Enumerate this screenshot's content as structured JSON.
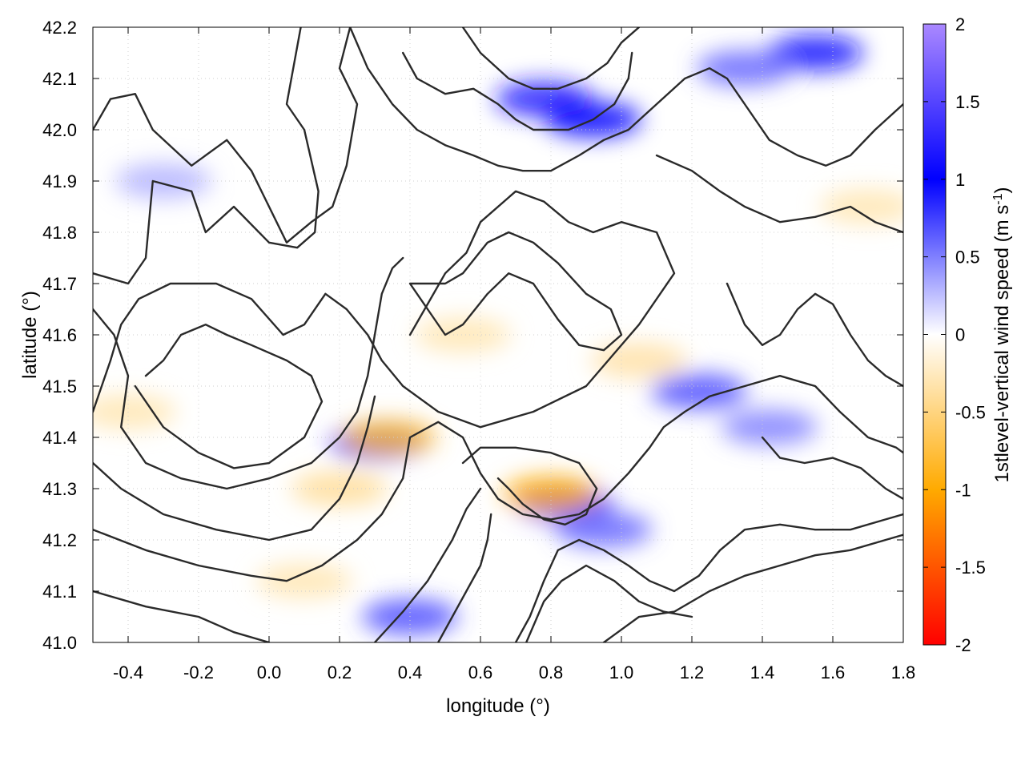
{
  "chart_data": {
    "type": "heatmap",
    "xlabel": "longitude (°)",
    "ylabel": "latitude (°)",
    "colorbar_label_prefix": "1stlevel-vertical wind speed (m s",
    "colorbar_label_exponent": "-1",
    "colorbar_label_suffix": ")",
    "xlim": [
      -0.5,
      1.8
    ],
    "ylim": [
      41.0,
      42.2
    ],
    "clim": [
      -2,
      2
    ],
    "x_ticks": [
      -0.4,
      -0.2,
      0.0,
      0.2,
      0.4,
      0.6,
      0.8,
      1.0,
      1.2,
      1.4,
      1.6,
      1.8
    ],
    "x_tick_labels": [
      "-0.4",
      "-0.2",
      "0.0",
      "0.2",
      "0.4",
      "0.6",
      "0.8",
      "1.0",
      "1.2",
      "1.4",
      "1.6",
      "1.8"
    ],
    "y_ticks": [
      41.0,
      41.1,
      41.2,
      41.3,
      41.4,
      41.5,
      41.6,
      41.7,
      41.8,
      41.9,
      42.0,
      42.1,
      42.2
    ],
    "y_tick_labels": [
      "41.0",
      "41.1",
      "41.2",
      "41.3",
      "41.4",
      "41.5",
      "41.6",
      "41.7",
      "41.8",
      "41.9",
      "42.0",
      "42.1",
      "42.2"
    ],
    "colorbar_ticks": [
      2,
      1.5,
      1,
      0.5,
      0,
      -0.5,
      -1,
      -1.5,
      -2
    ],
    "colorbar_tick_labels": [
      "2",
      "1.5",
      "1",
      "0.5",
      "0",
      "-0.5",
      "-1",
      "-1.5",
      "-2"
    ],
    "colormap": [
      {
        "value": -2,
        "color": "#ff0000"
      },
      {
        "value": -1,
        "color": "#ffaa00"
      },
      {
        "value": 0,
        "color": "#ffffff"
      },
      {
        "value": 1,
        "color": "#0000ff"
      },
      {
        "value": 2,
        "color": "#aa88ff"
      }
    ],
    "grid": true,
    "field_cells": [
      {
        "lon": 0.78,
        "lat": 42.06,
        "value": 1.2
      },
      {
        "lon": 0.92,
        "lat": 42.02,
        "value": 1.0
      },
      {
        "lon": 1.55,
        "lat": 42.15,
        "value": 1.1
      },
      {
        "lon": 1.35,
        "lat": 42.12,
        "value": 0.6
      },
      {
        "lon": 0.84,
        "lat": 41.27,
        "value": 1.3
      },
      {
        "lon": 0.8,
        "lat": 41.29,
        "value": -1.0
      },
      {
        "lon": 0.31,
        "lat": 41.39,
        "value": 1.0
      },
      {
        "lon": 0.34,
        "lat": 41.4,
        "value": -0.8
      },
      {
        "lon": 1.22,
        "lat": 41.49,
        "value": 0.7
      },
      {
        "lon": 1.42,
        "lat": 41.42,
        "value": 0.5
      },
      {
        "lon": 0.4,
        "lat": 41.05,
        "value": 0.7
      },
      {
        "lon": 0.2,
        "lat": 41.3,
        "value": -0.4
      },
      {
        "lon": 0.1,
        "lat": 41.12,
        "value": -0.3
      },
      {
        "lon": 0.55,
        "lat": 41.6,
        "value": -0.3
      },
      {
        "lon": 1.05,
        "lat": 41.55,
        "value": -0.35
      },
      {
        "lon": -0.3,
        "lat": 41.9,
        "value": 0.3
      },
      {
        "lon": 1.7,
        "lat": 41.85,
        "value": -0.3
      },
      {
        "lon": 0.95,
        "lat": 41.22,
        "value": 0.6
      },
      {
        "lon": -0.4,
        "lat": 41.45,
        "value": -0.3
      }
    ],
    "contours": [
      [
        [
          -0.5,
          42.0
        ],
        [
          -0.45,
          42.06
        ],
        [
          -0.38,
          42.07
        ],
        [
          -0.33,
          42.0
        ],
        [
          -0.22,
          41.93
        ],
        [
          -0.12,
          41.98
        ],
        [
          -0.05,
          41.92
        ],
        [
          0.05,
          41.78
        ],
        [
          0.12,
          41.82
        ],
        [
          0.18,
          41.85
        ],
        [
          0.22,
          41.93
        ],
        [
          0.25,
          42.05
        ],
        [
          0.2,
          42.12
        ],
        [
          0.23,
          42.2
        ]
      ],
      [
        [
          -0.5,
          41.72
        ],
        [
          -0.4,
          41.7
        ],
        [
          -0.35,
          41.75
        ],
        [
          -0.33,
          41.9
        ],
        [
          -0.22,
          41.88
        ],
        [
          -0.18,
          41.8
        ],
        [
          -0.1,
          41.85
        ],
        [
          0.0,
          41.78
        ],
        [
          0.08,
          41.77
        ],
        [
          0.13,
          41.8
        ],
        [
          0.14,
          41.88
        ],
        [
          0.1,
          42.0
        ],
        [
          0.05,
          42.05
        ],
        [
          0.09,
          42.2
        ]
      ],
      [
        [
          -0.5,
          41.45
        ],
        [
          -0.45,
          41.55
        ],
        [
          -0.42,
          41.62
        ],
        [
          -0.37,
          41.67
        ],
        [
          -0.28,
          41.7
        ],
        [
          -0.15,
          41.7
        ],
        [
          -0.05,
          41.67
        ],
        [
          0.04,
          41.6
        ],
        [
          0.1,
          41.62
        ],
        [
          0.16,
          41.68
        ],
        [
          0.22,
          41.65
        ],
        [
          0.28,
          41.6
        ],
        [
          0.32,
          41.55
        ],
        [
          0.38,
          41.5
        ],
        [
          0.48,
          41.45
        ],
        [
          0.6,
          41.42
        ],
        [
          0.75,
          41.45
        ],
        [
          0.9,
          41.5
        ],
        [
          1.05,
          41.62
        ],
        [
          1.15,
          41.72
        ],
        [
          1.1,
          41.8
        ],
        [
          1.0,
          41.82
        ],
        [
          0.92,
          41.8
        ],
        [
          0.85,
          41.82
        ],
        [
          0.78,
          41.86
        ],
        [
          0.7,
          41.88
        ],
        [
          0.6,
          41.82
        ],
        [
          0.56,
          41.76
        ],
        [
          0.5,
          41.72
        ],
        [
          0.45,
          41.66
        ],
        [
          0.4,
          41.6
        ]
      ],
      [
        [
          -0.38,
          41.5
        ],
        [
          -0.3,
          41.42
        ],
        [
          -0.2,
          41.37
        ],
        [
          -0.1,
          41.34
        ],
        [
          0.0,
          41.35
        ],
        [
          0.1,
          41.4
        ],
        [
          0.15,
          41.47
        ],
        [
          0.12,
          41.52
        ],
        [
          0.05,
          41.55
        ],
        [
          -0.05,
          41.58
        ],
        [
          -0.12,
          41.6
        ],
        [
          -0.18,
          41.62
        ],
        [
          -0.25,
          41.6
        ],
        [
          -0.3,
          41.55
        ],
        [
          -0.35,
          41.52
        ]
      ],
      [
        [
          -0.5,
          41.65
        ],
        [
          -0.44,
          41.6
        ],
        [
          -0.4,
          41.52
        ],
        [
          -0.42,
          41.42
        ],
        [
          -0.35,
          41.35
        ],
        [
          -0.25,
          41.32
        ],
        [
          -0.12,
          41.3
        ],
        [
          0.0,
          41.32
        ],
        [
          0.12,
          41.35
        ],
        [
          0.2,
          41.4
        ],
        [
          0.25,
          41.45
        ],
        [
          0.28,
          41.52
        ],
        [
          0.3,
          41.6
        ],
        [
          0.32,
          41.68
        ],
        [
          0.35,
          41.73
        ],
        [
          0.38,
          41.75
        ]
      ],
      [
        [
          0.4,
          41.7
        ],
        [
          0.45,
          41.65
        ],
        [
          0.5,
          41.6
        ],
        [
          0.55,
          41.62
        ],
        [
          0.62,
          41.68
        ],
        [
          0.68,
          41.72
        ],
        [
          0.75,
          41.7
        ],
        [
          0.82,
          41.63
        ],
        [
          0.88,
          41.58
        ],
        [
          0.95,
          41.57
        ],
        [
          1.0,
          41.6
        ],
        [
          0.97,
          41.65
        ],
        [
          0.9,
          41.68
        ],
        [
          0.82,
          41.74
        ],
        [
          0.75,
          41.78
        ],
        [
          0.68,
          41.8
        ],
        [
          0.62,
          41.78
        ],
        [
          0.55,
          41.72
        ],
        [
          0.5,
          41.7
        ],
        [
          0.4,
          41.7
        ]
      ],
      [
        [
          -0.5,
          41.22
        ],
        [
          -0.35,
          41.18
        ],
        [
          -0.2,
          41.15
        ],
        [
          -0.05,
          41.13
        ],
        [
          0.05,
          41.12
        ],
        [
          0.15,
          41.15
        ],
        [
          0.25,
          41.2
        ],
        [
          0.32,
          41.25
        ],
        [
          0.38,
          41.32
        ],
        [
          0.4,
          41.4
        ],
        [
          0.48,
          41.43
        ],
        [
          0.55,
          41.4
        ],
        [
          0.6,
          41.33
        ],
        [
          0.65,
          41.28
        ],
        [
          0.72,
          41.25
        ],
        [
          0.8,
          41.24
        ],
        [
          0.88,
          41.25
        ],
        [
          0.95,
          41.28
        ],
        [
          1.02,
          41.33
        ],
        [
          1.08,
          41.38
        ],
        [
          1.12,
          41.42
        ],
        [
          1.18,
          41.45
        ],
        [
          1.25,
          41.48
        ],
        [
          1.35,
          41.5
        ],
        [
          1.45,
          41.52
        ],
        [
          1.55,
          41.5
        ],
        [
          1.62,
          41.45
        ],
        [
          1.7,
          41.4
        ],
        [
          1.78,
          41.38
        ],
        [
          1.8,
          41.37
        ]
      ],
      [
        [
          -0.5,
          41.1
        ],
        [
          -0.35,
          41.07
        ],
        [
          -0.2,
          41.05
        ],
        [
          -0.1,
          41.02
        ],
        [
          0.0,
          41.0
        ]
      ],
      [
        [
          0.3,
          41.0
        ],
        [
          0.38,
          41.06
        ],
        [
          0.45,
          41.12
        ],
        [
          0.52,
          41.2
        ],
        [
          0.56,
          41.26
        ],
        [
          0.6,
          41.3
        ]
      ],
      [
        [
          0.48,
          41.0
        ],
        [
          0.52,
          41.05
        ],
        [
          0.56,
          41.1
        ],
        [
          0.6,
          41.15
        ],
        [
          0.62,
          41.2
        ],
        [
          0.63,
          41.25
        ]
      ],
      [
        [
          0.7,
          41.0
        ],
        [
          0.74,
          41.05
        ],
        [
          0.78,
          41.12
        ],
        [
          0.82,
          41.18
        ],
        [
          0.88,
          41.2
        ],
        [
          0.95,
          41.18
        ],
        [
          1.02,
          41.15
        ],
        [
          1.08,
          41.12
        ],
        [
          1.15,
          41.1
        ],
        [
          1.22,
          41.13
        ],
        [
          1.28,
          41.18
        ],
        [
          1.35,
          41.22
        ],
        [
          1.45,
          41.23
        ],
        [
          1.55,
          41.22
        ],
        [
          1.65,
          41.22
        ],
        [
          1.75,
          41.24
        ],
        [
          1.8,
          41.25
        ]
      ],
      [
        [
          0.73,
          41.0
        ],
        [
          0.78,
          41.08
        ],
        [
          0.83,
          41.12
        ],
        [
          0.9,
          41.15
        ],
        [
          0.98,
          41.12
        ],
        [
          1.05,
          41.08
        ],
        [
          1.12,
          41.06
        ],
        [
          1.2,
          41.05
        ]
      ],
      [
        [
          0.95,
          41.0
        ],
        [
          1.05,
          41.05
        ],
        [
          1.15,
          41.06
        ],
        [
          1.25,
          41.1
        ],
        [
          1.35,
          41.13
        ],
        [
          1.45,
          41.15
        ],
        [
          1.55,
          41.17
        ],
        [
          1.65,
          41.18
        ],
        [
          1.75,
          41.2
        ],
        [
          1.8,
          41.21
        ]
      ],
      [
        [
          0.23,
          42.2
        ],
        [
          0.28,
          42.12
        ],
        [
          0.35,
          42.05
        ],
        [
          0.42,
          42.0
        ],
        [
          0.5,
          41.97
        ],
        [
          0.58,
          41.95
        ],
        [
          0.65,
          41.93
        ],
        [
          0.72,
          41.92
        ],
        [
          0.8,
          41.92
        ],
        [
          0.88,
          41.95
        ],
        [
          0.95,
          41.98
        ],
        [
          1.02,
          42.0
        ],
        [
          1.1,
          42.05
        ],
        [
          1.18,
          42.1
        ],
        [
          1.25,
          42.12
        ],
        [
          1.3,
          42.1
        ],
        [
          1.35,
          42.05
        ],
        [
          1.42,
          41.98
        ],
        [
          1.5,
          41.95
        ],
        [
          1.58,
          41.93
        ],
        [
          1.65,
          41.95
        ],
        [
          1.72,
          42.0
        ],
        [
          1.8,
          42.05
        ]
      ],
      [
        [
          0.55,
          42.2
        ],
        [
          0.6,
          42.15
        ],
        [
          0.68,
          42.1
        ],
        [
          0.75,
          42.08
        ],
        [
          0.82,
          42.08
        ],
        [
          0.9,
          42.1
        ],
        [
          0.96,
          42.13
        ],
        [
          1.0,
          42.17
        ],
        [
          1.05,
          42.2
        ]
      ],
      [
        [
          0.38,
          42.15
        ],
        [
          0.42,
          42.1
        ],
        [
          0.5,
          42.07
        ],
        [
          0.58,
          42.08
        ],
        [
          0.65,
          42.05
        ],
        [
          0.7,
          42.02
        ],
        [
          0.75,
          42.0
        ],
        [
          0.85,
          42.0
        ],
        [
          0.92,
          42.02
        ],
        [
          0.98,
          42.05
        ],
        [
          1.02,
          42.1
        ],
        [
          1.03,
          42.15
        ]
      ],
      [
        [
          1.1,
          41.95
        ],
        [
          1.2,
          41.92
        ],
        [
          1.28,
          41.88
        ],
        [
          1.35,
          41.85
        ],
        [
          1.45,
          41.82
        ],
        [
          1.55,
          41.83
        ],
        [
          1.65,
          41.85
        ],
        [
          1.72,
          41.82
        ],
        [
          1.8,
          41.8
        ]
      ],
      [
        [
          1.3,
          41.7
        ],
        [
          1.35,
          41.62
        ],
        [
          1.4,
          41.58
        ],
        [
          1.45,
          41.6
        ],
        [
          1.5,
          41.65
        ],
        [
          1.55,
          41.68
        ],
        [
          1.6,
          41.66
        ],
        [
          1.65,
          41.6
        ],
        [
          1.7,
          41.55
        ],
        [
          1.75,
          41.52
        ],
        [
          1.8,
          41.5
        ]
      ],
      [
        [
          -0.5,
          41.35
        ],
        [
          -0.42,
          41.3
        ],
        [
          -0.3,
          41.25
        ],
        [
          -0.15,
          41.22
        ],
        [
          0.0,
          41.2
        ],
        [
          0.12,
          41.22
        ],
        [
          0.2,
          41.28
        ],
        [
          0.25,
          41.35
        ],
        [
          0.28,
          41.42
        ],
        [
          0.3,
          41.48
        ]
      ],
      [
        [
          0.55,
          41.35
        ],
        [
          0.6,
          41.38
        ],
        [
          0.7,
          41.38
        ],
        [
          0.8,
          41.37
        ],
        [
          0.88,
          41.35
        ],
        [
          0.93,
          41.3
        ],
        [
          0.9,
          41.25
        ],
        [
          0.84,
          41.23
        ],
        [
          0.78,
          41.24
        ],
        [
          0.72,
          41.27
        ],
        [
          0.68,
          41.3
        ],
        [
          0.65,
          41.32
        ]
      ],
      [
        [
          1.4,
          41.4
        ],
        [
          1.45,
          41.36
        ],
        [
          1.52,
          41.35
        ],
        [
          1.6,
          41.36
        ],
        [
          1.68,
          41.34
        ],
        [
          1.75,
          41.3
        ],
        [
          1.8,
          41.28
        ]
      ]
    ]
  }
}
